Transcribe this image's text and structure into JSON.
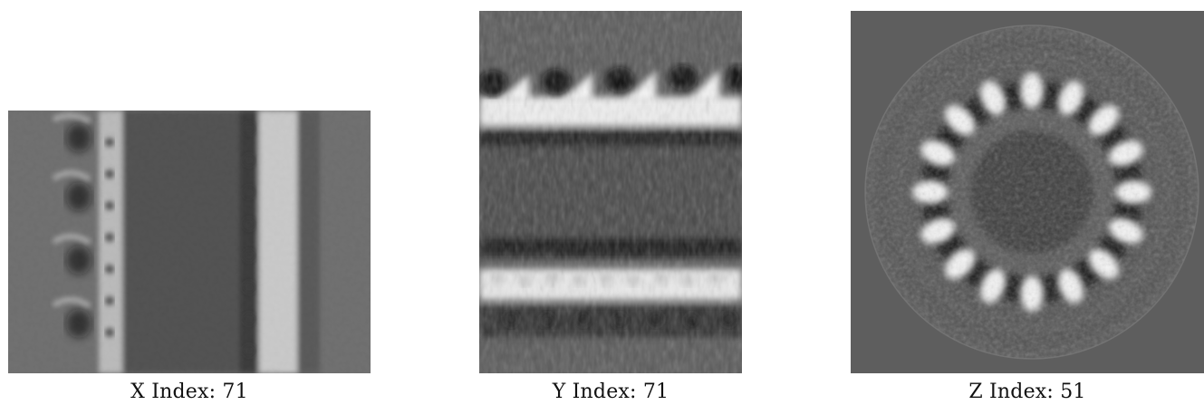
{
  "slices": [
    {
      "axis": "X",
      "label": "X Index:",
      "index": "71"
    },
    {
      "axis": "Y",
      "label": "Y Index:",
      "index": "71"
    },
    {
      "axis": "Z",
      "label": "Z Index:",
      "index": "51"
    }
  ],
  "colors": {
    "background": "#ffffff",
    "mid_gray": "#5e5e5e",
    "dark": "#141414",
    "bright": "#f4f4f4"
  }
}
